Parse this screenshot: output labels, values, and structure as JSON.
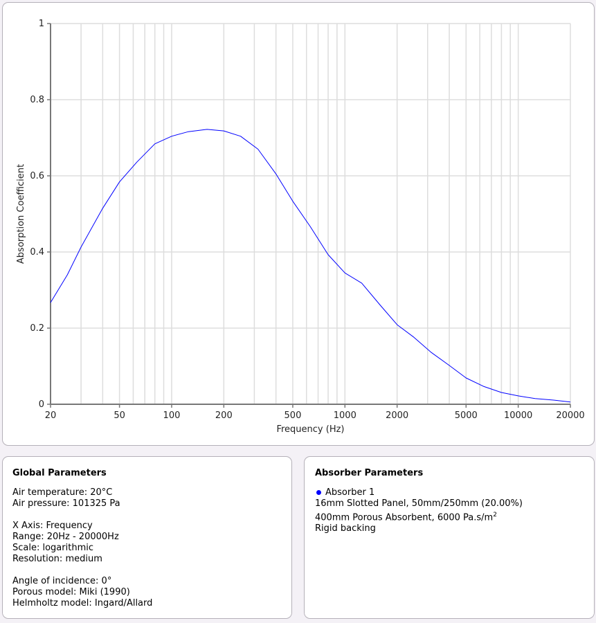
{
  "chart_data": {
    "type": "line",
    "title": "",
    "xlabel": "Frequency (Hz)",
    "ylabel": "Absorption Coefficient",
    "xscale": "log",
    "xlim": [
      20,
      20000
    ],
    "ylim": [
      0,
      1
    ],
    "grid": true,
    "x_ticks": [
      20,
      50,
      100,
      200,
      500,
      1000,
      2000,
      5000,
      10000,
      20000
    ],
    "x_tick_labels": [
      "20",
      "50",
      "100",
      "200",
      "500",
      "1000",
      "2000",
      "5000",
      "10000",
      "20000"
    ],
    "y_ticks": [
      0,
      0.2,
      0.4,
      0.6,
      0.8,
      1
    ],
    "y_tick_labels": [
      "0",
      "0.2",
      "0.4",
      "0.6",
      "0.8",
      "1"
    ],
    "series": [
      {
        "name": "Absorber 1",
        "color": "#0000ff",
        "x": [
          20,
          25,
          30,
          40,
          50,
          63,
          80,
          100,
          125,
          160,
          200,
          250,
          315,
          400,
          500,
          630,
          800,
          1000,
          1250,
          1600,
          2000,
          2500,
          3150,
          4000,
          5000,
          6300,
          8000,
          10000,
          12500,
          16000,
          20000
        ],
        "y": [
          0.267,
          0.34,
          0.413,
          0.515,
          0.584,
          0.636,
          0.684,
          0.704,
          0.716,
          0.722,
          0.718,
          0.704,
          0.67,
          0.605,
          0.533,
          0.467,
          0.393,
          0.345,
          0.318,
          0.26,
          0.209,
          0.176,
          0.136,
          0.102,
          0.069,
          0.047,
          0.031,
          0.022,
          0.015,
          0.011,
          0.006
        ]
      }
    ]
  },
  "global": {
    "title": "Global Parameters",
    "lines": [
      [
        "Air temperature: 20°C",
        "Air pressure: 101325 Pa"
      ],
      [
        "X Axis: Frequency",
        "Range: 20Hz - 20000Hz",
        "Scale: logarithmic",
        "Resolution: medium"
      ],
      [
        "Angle of incidence: 0°",
        "Porous model: Miki (1990)",
        "Helmholtz model: Ingard/Allard"
      ]
    ]
  },
  "absorber": {
    "title": "Absorber Parameters",
    "name": "Absorber 1",
    "color": "#0000ff",
    "layer1": "16mm Slotted Panel, 50mm/250mm (20.00%)",
    "layer2": "400mm Porous Absorbent, 6000 Pa.s/m",
    "layer2_sup": "2",
    "backing": "Rigid backing"
  }
}
